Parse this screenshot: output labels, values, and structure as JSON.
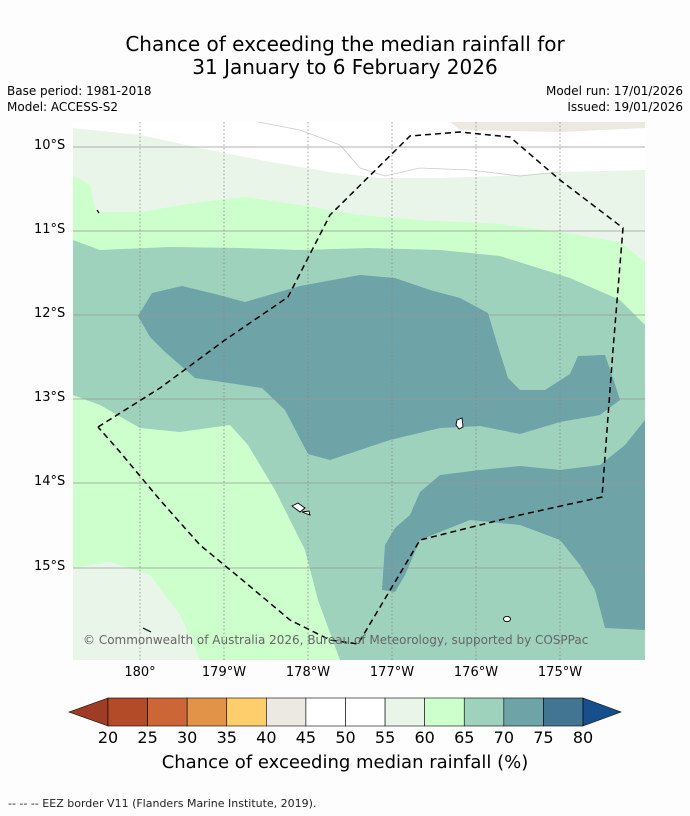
{
  "title": {
    "line1": "Chance of exceeding the median rainfall for",
    "line2": "31 January to 6 February 2026"
  },
  "meta": {
    "base_period": "Base period: 1981-2018",
    "model": "Model: ACCESS-S2",
    "model_run": "Model run: 17/01/2026",
    "issued": "Issued: 19/01/2026"
  },
  "map": {
    "lat_labels": [
      "10°S",
      "11°S",
      "12°S",
      "13°S",
      "14°S",
      "15°S"
    ],
    "lon_labels": [
      "180°",
      "179°W",
      "178°W",
      "177°W",
      "176°W",
      "175°W"
    ],
    "copyright": "© Commonwealth of Australia 2026, Bureau of Meteorology, supported by COSPPac",
    "colors": {
      "band_55_60": "#eaf5ea",
      "band_60_65": "#ccffcc",
      "band_65_70": "#9ed2bc",
      "band_70_75": "#6ea3a8",
      "ocean_background": "#ffffff",
      "eez_border": "#000000"
    }
  },
  "colorbar": {
    "title": "Chance of exceeding median rainfall (%)",
    "ticks": [
      "20",
      "25",
      "30",
      "35",
      "40",
      "45",
      "50",
      "55",
      "60",
      "65",
      "70",
      "75",
      "80"
    ],
    "colors": [
      "#b34b28",
      "#cd6637",
      "#e19448",
      "#fecd6c",
      "#ece8e2",
      "#ffffff",
      "#ffffff",
      "#eaf5ea",
      "#ccffcc",
      "#9ed2bc",
      "#6ea3a8",
      "#417592"
    ],
    "under_color": "#9e3c25",
    "over_color": "#164f8c"
  },
  "footer": {
    "eez_note": "-- -- -- EEZ border V11 (Flanders Marine Institute, 2019)."
  }
}
